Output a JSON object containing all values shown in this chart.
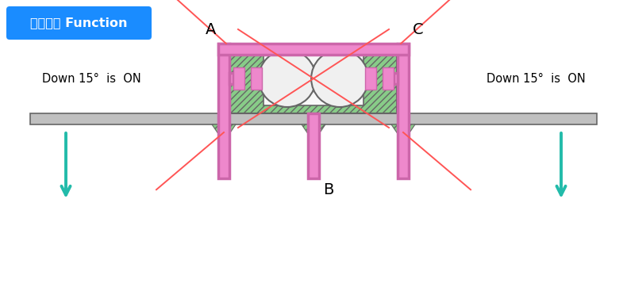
{
  "title": "触发角度 Function",
  "title_bg": "#1A8CFF",
  "title_fg": "#FFFFFF",
  "bg_color": "#FFFFFF",
  "pink": "#CC66AA",
  "pink_fill": "#EE88CC",
  "gray_edge": "#666666",
  "gray_fill": "#C0C0C0",
  "green_fill": "#88CC88",
  "ball_fill": "#F0F0F0",
  "red_line": "#FF5555",
  "teal_arrow": "#22BBAA",
  "dark": "#444444",
  "label_A": "A",
  "label_B": "B",
  "label_C": "C",
  "text_left": "Down 15°  is  ON",
  "text_right": "Down 15°  is  ON",
  "fig_w": 7.9,
  "fig_h": 3.57,
  "dpi": 100
}
